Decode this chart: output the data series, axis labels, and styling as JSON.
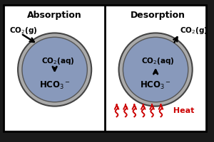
{
  "bg_color": "#1a1a1a",
  "panel_bg": "#ffffff",
  "circle_gray": "#aaaaaa",
  "circle_blue": "#8899bb",
  "circle_edge": "#666666",
  "divider_color": "#000000",
  "text_color": "#000000",
  "red_color": "#cc0000",
  "title_left": "Absorption",
  "title_right": "Desorption",
  "heat_label": " Heat",
  "figsize": [
    3.0,
    2.01
  ],
  "dpi": 100
}
